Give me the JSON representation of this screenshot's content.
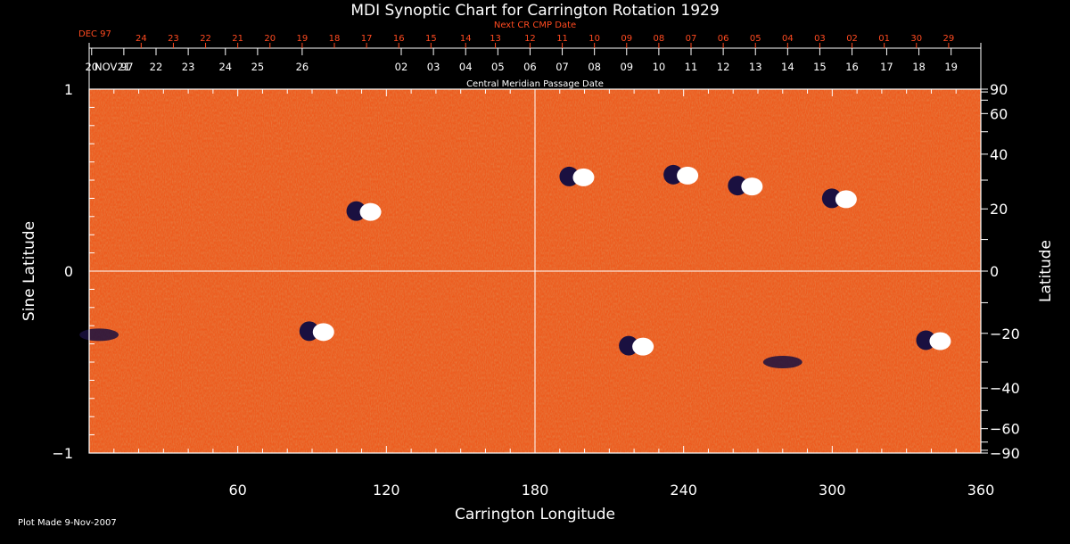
{
  "chart_data": {
    "type": "heatmap",
    "title": "MDI Synoptic Chart for Carrington Rotation 1929",
    "xlabel": "Carrington Longitude",
    "ylabel_left": "Sine Latitude",
    "ylabel_right": "Latitude",
    "xlim": [
      0,
      360
    ],
    "ylim": [
      -1,
      1
    ],
    "x_ticks": [
      60,
      120,
      180,
      240,
      300,
      360
    ],
    "y_ticks_left": [
      {
        "value": 1,
        "label": "1"
      },
      {
        "value": 0,
        "label": "0"
      },
      {
        "value": -1,
        "label": "−1"
      }
    ],
    "y_ticks_right": [
      "90",
      "60",
      "40",
      "20",
      "0",
      "−20",
      "−40",
      "−60",
      "−90"
    ],
    "y_ticks_right_values": [
      90,
      60,
      40,
      20,
      0,
      -20,
      -40,
      -60,
      -90
    ],
    "top_axis_cmp": {
      "label": "Central Meridian Passage Date",
      "month_label": "NOV 97",
      "dates": [
        "26",
        "25",
        "24",
        "23",
        "22",
        "21",
        "20",
        "19",
        "18",
        "17",
        "16",
        "15",
        "14",
        "13",
        "12",
        "11",
        "10",
        "09",
        "08",
        "07",
        "06",
        "05",
        "04",
        "03",
        "02"
      ],
      "longitudes": [
        86,
        68,
        55,
        40,
        27,
        14,
        1,
        -12,
        -25,
        -38,
        -52,
        -65,
        -78,
        -91,
        -104,
        -117,
        -130,
        -143,
        -156,
        -169,
        -182,
        -195,
        -208,
        -221,
        -234
      ]
    },
    "top_axis_next_cmp": {
      "label": "Next CR CMP Date",
      "month_label": "DEC 97",
      "dates": [
        "24",
        "23",
        "22",
        "21",
        "20",
        "19",
        "18",
        "17",
        "16",
        "15",
        "14",
        "13",
        "12",
        "11",
        "10",
        "09",
        "08",
        "07",
        "06",
        "05",
        "04",
        "03",
        "02",
        "01",
        "30",
        "29"
      ],
      "longitudes": [
        21,
        34,
        47,
        60,
        73,
        86,
        99,
        112,
        125,
        138,
        152,
        164,
        178,
        191,
        204,
        217,
        230,
        243,
        256,
        269,
        282,
        295,
        308,
        321,
        334,
        347
      ]
    },
    "colors": {
      "positive": "#ffffff",
      "neutral": "#e8501a",
      "negative": "#1a1040",
      "grid": "#ffffff"
    },
    "active_regions": [
      {
        "lon": 110,
        "sinlat": 0.33,
        "polarity": "bipolar"
      },
      {
        "lon": 196,
        "sinlat": 0.52,
        "polarity": "bipolar"
      },
      {
        "lon": 238,
        "sinlat": 0.53,
        "polarity": "bipolar"
      },
      {
        "lon": 264,
        "sinlat": 0.47,
        "polarity": "bipolar"
      },
      {
        "lon": 302,
        "sinlat": 0.4,
        "polarity": "bipolar"
      },
      {
        "lon": 340,
        "sinlat": -0.38,
        "polarity": "bipolar"
      },
      {
        "lon": 91,
        "sinlat": -0.33,
        "polarity": "bipolar"
      },
      {
        "lon": 220,
        "sinlat": -0.41,
        "polarity": "bipolar"
      },
      {
        "lon": 280,
        "sinlat": -0.5,
        "polarity": "negative"
      },
      {
        "lon": 4,
        "sinlat": -0.35,
        "polarity": "negative"
      }
    ]
  },
  "footer": {
    "plot_made": "Plot Made  9-Nov-2007"
  }
}
